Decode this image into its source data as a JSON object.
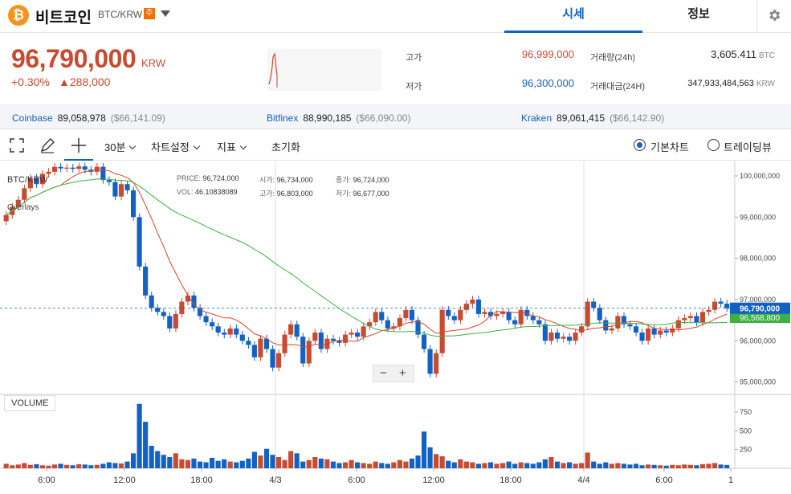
{
  "header": {
    "coin_symbol": "₿",
    "coin_name": "비트코인",
    "pair": "BTC/KRW",
    "badge": "주",
    "tabs": [
      {
        "label": "시세"
      },
      {
        "label": "정보"
      }
    ]
  },
  "summary": {
    "price": "96,790,000",
    "unit": "KRW",
    "change_pct": "+0.30%",
    "change_amt": "▲288,000",
    "high_label": "고가",
    "high": "96,999,000",
    "low_label": "저가",
    "low": "96,300,000",
    "volume_label": "거래량(24h)",
    "volume": "3,605.411",
    "volume_unit": "BTC",
    "amount_label": "거래대금(24H)",
    "amount": "347,933,484,563",
    "amount_unit": "KRW"
  },
  "exchanges": [
    {
      "name": "Coinbase",
      "krw": "89,058,978",
      "usd": "($66,141.09)"
    },
    {
      "name": "Bitfinex",
      "krw": "88,990,185",
      "usd": "($66,090.00)"
    },
    {
      "name": "Kraken",
      "krw": "89,061,415",
      "usd": "($66,142.90)"
    }
  ],
  "toolbar": {
    "interval": "30분",
    "chart_settings": "차트설정",
    "indicators": "지표",
    "reset": "초기화",
    "basic_chart": "기본차트",
    "tradingview": "트레이딩뷰"
  },
  "chart_data": {
    "type": "candlestick",
    "title": "BTC/KRW",
    "overlays_label": "Overlays",
    "ohlc": {
      "price_label": "PRICE:",
      "price": "96,724,000",
      "open_label": "시가:",
      "open": "96,734,000",
      "close_label": "종가:",
      "close": "96,724,000",
      "vol_label": "VOL:",
      "vol": "46.10838089",
      "high_label": "고가:",
      "high": "96,803,000",
      "low_label": "저가:",
      "low": "96,677,000"
    },
    "y_ticks": [
      "100,000,000",
      "99,000,000",
      "98,000,000",
      "97,000,000",
      "96,000,000",
      "95,000,000"
    ],
    "y_tick_values": [
      100000000,
      99000000,
      98000000,
      97000000,
      96000000,
      95000000
    ],
    "ylim": [
      94700000,
      100350000
    ],
    "current_price_label": "96,790,000",
    "current_price": 96790000,
    "ma_label": "96,568,800",
    "ma_value": 96568800,
    "x_ticks": [
      "6:00",
      "12:00",
      "18:00",
      "4/3",
      "6:00",
      "12:00",
      "18:00",
      "4/4",
      "6:00",
      "1"
    ],
    "volume_title": "VOLUME",
    "volume_ticks": [
      "750",
      "500",
      "250"
    ],
    "volume_tick_values": [
      750,
      500,
      250
    ],
    "volume_max": 900,
    "candles_close": [
      99050000,
      99250000,
      99420000,
      99700000,
      99950000,
      99800000,
      100050000,
      100100000,
      100220000,
      100180000,
      100200000,
      100170000,
      100230000,
      100150000,
      100100000,
      100220000,
      99900000,
      99850000,
      99500000,
      99800000,
      99650000,
      99000000,
      97800000,
      97100000,
      96800000,
      96700000,
      96600000,
      96300000,
      96650000,
      96950000,
      97100000,
      96800000,
      96600000,
      96450000,
      96350000,
      96200000,
      96150000,
      96300000,
      96150000,
      96000000,
      95900000,
      95600000,
      96050000,
      95800000,
      95350000,
      95700000,
      96150000,
      96400000,
      96100000,
      95450000,
      96000000,
      96200000,
      95800000,
      96050000,
      96000000,
      95950000,
      96150000,
      96200000,
      96100000,
      96350000,
      96450000,
      96700000,
      96500000,
      96300000,
      96350000,
      96550000,
      96750000,
      96500000,
      96150000,
      95800000,
      95200000,
      95700000,
      96750000,
      96600000,
      96500000,
      96750000,
      96900000,
      97000000,
      96650000,
      96700000,
      96600000,
      96650000,
      96700000,
      96500000,
      96400000,
      96750000,
      96600000,
      96500000,
      96400000,
      96000000,
      96200000,
      96050000,
      96100000,
      96000000,
      96200000,
      96350000,
      96950000,
      96800000,
      96500000,
      96250000,
      96300000,
      96600000,
      96400000,
      96350000,
      96200000,
      96000000,
      96300000,
      96150000,
      96250000,
      96200000,
      96300000,
      96500000,
      96550000,
      96600000,
      96450000,
      96700000,
      96750000,
      96950000,
      96900000,
      96790000
    ],
    "candles_open": [
      98900000,
      99050000,
      99250000,
      99420000,
      99700000,
      99950000,
      99800000,
      100050000,
      100100000,
      100220000,
      100180000,
      100200000,
      100170000,
      100230000,
      100150000,
      100100000,
      100220000,
      99900000,
      99850000,
      99500000,
      99800000,
      99650000,
      99000000,
      97800000,
      97100000,
      96800000,
      96700000,
      96600000,
      96300000,
      96650000,
      96950000,
      97100000,
      96800000,
      96600000,
      96450000,
      96350000,
      96200000,
      96150000,
      96300000,
      96150000,
      96000000,
      95900000,
      95600000,
      96050000,
      95800000,
      95350000,
      95700000,
      96150000,
      96400000,
      96100000,
      95450000,
      96000000,
      96200000,
      95800000,
      96050000,
      96000000,
      95950000,
      96150000,
      96200000,
      96100000,
      96350000,
      96450000,
      96700000,
      96500000,
      96300000,
      96350000,
      96550000,
      96750000,
      96500000,
      96150000,
      95800000,
      95200000,
      95700000,
      96750000,
      96600000,
      96500000,
      96750000,
      96900000,
      97000000,
      96650000,
      96700000,
      96600000,
      96650000,
      96700000,
      96500000,
      96400000,
      96750000,
      96600000,
      96500000,
      96400000,
      96000000,
      96200000,
      96050000,
      96100000,
      96000000,
      96200000,
      96350000,
      96950000,
      96800000,
      96500000,
      96250000,
      96300000,
      96600000,
      96400000,
      96350000,
      96200000,
      96000000,
      96300000,
      96150000,
      96250000,
      96200000,
      96300000,
      96500000,
      96550000,
      96600000,
      96450000,
      96700000,
      96750000,
      96950000,
      96900000
    ],
    "volumes": [
      60,
      40,
      50,
      70,
      45,
      55,
      40,
      35,
      50,
      60,
      45,
      40,
      55,
      50,
      40,
      45,
      60,
      80,
      70,
      65,
      90,
      200,
      860,
      620,
      300,
      230,
      180,
      150,
      200,
      120,
      110,
      130,
      90,
      80,
      140,
      100,
      120,
      90,
      80,
      100,
      130,
      220,
      170,
      260,
      180,
      150,
      110,
      230,
      200,
      90,
      110,
      150,
      130,
      120,
      90,
      70,
      80,
      110,
      80,
      70,
      60,
      90,
      70,
      60,
      80,
      110,
      90,
      130,
      170,
      490,
      280,
      190,
      160,
      100,
      80,
      120,
      90,
      80,
      60,
      70,
      80,
      60,
      70,
      90,
      60,
      80,
      70,
      60,
      80,
      120,
      150,
      90,
      70,
      80,
      60,
      70,
      210,
      90,
      60,
      80,
      60,
      70,
      60,
      50,
      60,
      40,
      50,
      45,
      40,
      35,
      45,
      40,
      50,
      45,
      40,
      55,
      60,
      70,
      50,
      45
    ]
  }
}
